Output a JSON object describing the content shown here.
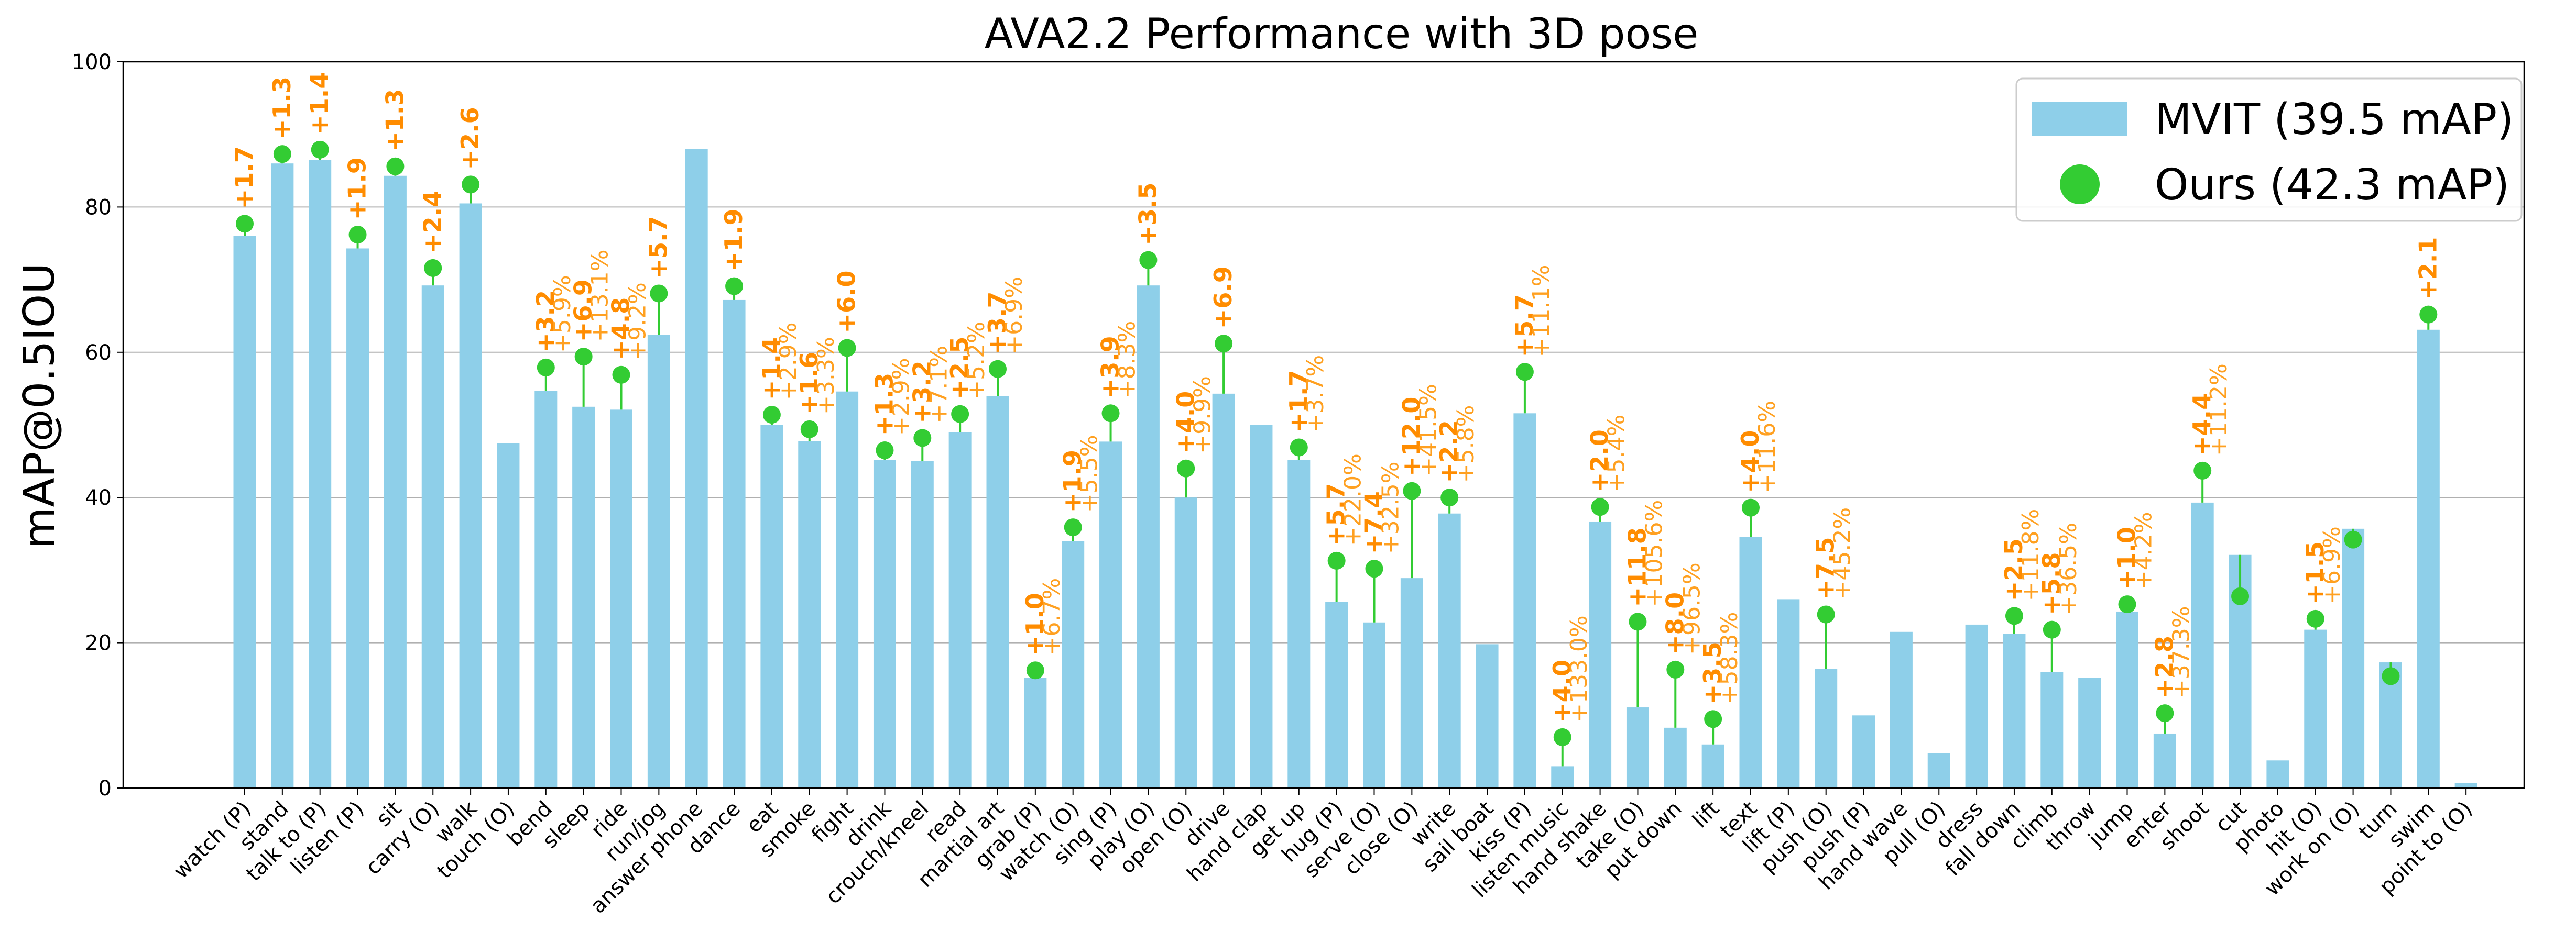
{
  "chart_data": {
    "type": "bar",
    "title": "AVA2.2 Performance with 3D pose",
    "xlabel": "",
    "ylabel": "mAP@0.5IOU",
    "ylim": [
      0,
      100
    ],
    "yticks": [
      "0",
      "20",
      "40",
      "60",
      "80",
      "100"
    ],
    "grid": "horizontal",
    "legend_position": "top-right",
    "colors": {
      "bar": "#8ecfe9",
      "marker": "#33cc33",
      "label": "#ff8c00",
      "pct": "#ffa020"
    },
    "legend": [
      "MVIT (39.5 mAP)",
      "Ours (42.3 mAP)"
    ],
    "categories": [
      "watch (P)",
      "stand",
      "talk to (P)",
      "listen (P)",
      "sit",
      "carry (O)",
      "walk",
      "touch (O)",
      "bend",
      "sleep",
      "ride",
      "run/jog",
      "answer phone",
      "dance",
      "eat",
      "smoke",
      "fight",
      "drink",
      "crouch/kneel",
      "read",
      "martial art",
      "grab (P)",
      "watch (O)",
      "sing (P)",
      "play (O)",
      "open (O)",
      "drive",
      "hand clap",
      "get up",
      "hug (P)",
      "serve (O)",
      "close (O)",
      "write",
      "sail boat",
      "kiss (P)",
      "listen music",
      "hand shake",
      "take (O)",
      "put down",
      "lift",
      "text",
      "lift (P)",
      "push (O)",
      "push (P)",
      "hand wave",
      "pull (O)",
      "dress",
      "fall down",
      "climb",
      "throw",
      "jump",
      "enter",
      "shoot",
      "cut",
      "photo",
      "hit (O)",
      "work on (O)",
      "turn",
      "swim",
      "point to (O)"
    ],
    "series": [
      {
        "name": "MVIT (39.5 mAP)",
        "values": [
          76.0,
          86.0,
          86.5,
          74.3,
          84.3,
          69.2,
          80.5,
          47.5,
          54.7,
          52.5,
          52.1,
          62.4,
          88.0,
          67.2,
          50.0,
          47.8,
          54.6,
          45.2,
          45.0,
          49.0,
          54.0,
          15.2,
          34.0,
          47.7,
          69.2,
          40.0,
          54.3,
          50.0,
          45.2,
          25.6,
          22.8,
          28.9,
          37.8,
          19.8,
          51.6,
          3.0,
          36.7,
          11.1,
          8.3,
          6.0,
          34.6,
          26.0,
          16.4,
          10.0,
          21.5,
          4.8,
          22.5,
          21.2,
          16.0,
          15.2,
          24.3,
          7.5,
          39.3,
          32.1,
          3.8,
          21.8,
          35.7,
          17.3,
          63.1,
          0.7
        ]
      },
      {
        "name": "Ours (42.3 mAP)",
        "values": [
          77.7,
          87.3,
          87.9,
          76.2,
          85.6,
          71.6,
          83.1,
          null,
          57.9,
          59.4,
          56.9,
          68.1,
          null,
          69.1,
          51.4,
          49.4,
          60.6,
          46.5,
          48.2,
          51.5,
          57.7,
          16.2,
          35.9,
          51.6,
          72.7,
          44.0,
          61.2,
          null,
          46.9,
          31.3,
          30.2,
          40.9,
          40.0,
          null,
          57.3,
          7.0,
          38.7,
          22.9,
          16.3,
          9.5,
          38.6,
          null,
          23.9,
          null,
          null,
          null,
          null,
          23.7,
          21.8,
          null,
          25.3,
          10.3,
          43.7,
          26.4,
          null,
          23.3,
          34.2,
          15.4,
          65.2,
          null
        ]
      }
    ],
    "annotations": {
      "abs": [
        "+1.7",
        "+1.3",
        "+1.4",
        "+1.9",
        "+1.3",
        "+2.4",
        "+2.6",
        "",
        "+3.2",
        "+6.9",
        "+4.8",
        "+5.7",
        "",
        "+1.9",
        "+1.4",
        "+1.6",
        "+6.0",
        "+1.3",
        "+3.2",
        "+2.5",
        "+3.7",
        "+1.0",
        "+1.9",
        "+3.9",
        "+3.5",
        "+4.0",
        "+6.9",
        "",
        "+1.7",
        "+5.7",
        "+7.4",
        "+12.0",
        "+2.2",
        "",
        "+5.7",
        "+4.0",
        "+2.0",
        "+11.8",
        "+8.0",
        "+3.5",
        "+4.0",
        "",
        "+7.5",
        "",
        "",
        "",
        "",
        "+2.5",
        "+5.8",
        "",
        "+1.0",
        "+2.8",
        "+4.4",
        "",
        "",
        "+1.5",
        "",
        "",
        "+2.1",
        ""
      ],
      "pct": [
        "",
        "",
        "",
        "",
        "",
        "",
        "",
        "",
        "+5.9%",
        "+13.1%",
        "+9.2%",
        "",
        "",
        "",
        "+2.9%",
        "+3.3%",
        "",
        "+2.9%",
        "+7.1%",
        "+5.2%",
        "+6.9%",
        "+6.7%",
        "+5.5%",
        "+8.3%",
        "",
        "+9.9%",
        "",
        "",
        "+3.7%",
        "+22.0%",
        "+32.5%",
        "+41.5%",
        "+5.8%",
        "",
        "+11.1%",
        "+133.0%",
        "+5.4%",
        "+105.6%",
        "+96.5%",
        "+58.3%",
        "+11.6%",
        "",
        "+45.2%",
        "",
        "",
        "",
        "",
        "+11.8%",
        "+36.5%",
        "",
        "+4.2%",
        "+37.3%",
        "+11.2%",
        "",
        "",
        "+6.9%",
        "",
        "",
        "",
        ""
      ]
    }
  }
}
